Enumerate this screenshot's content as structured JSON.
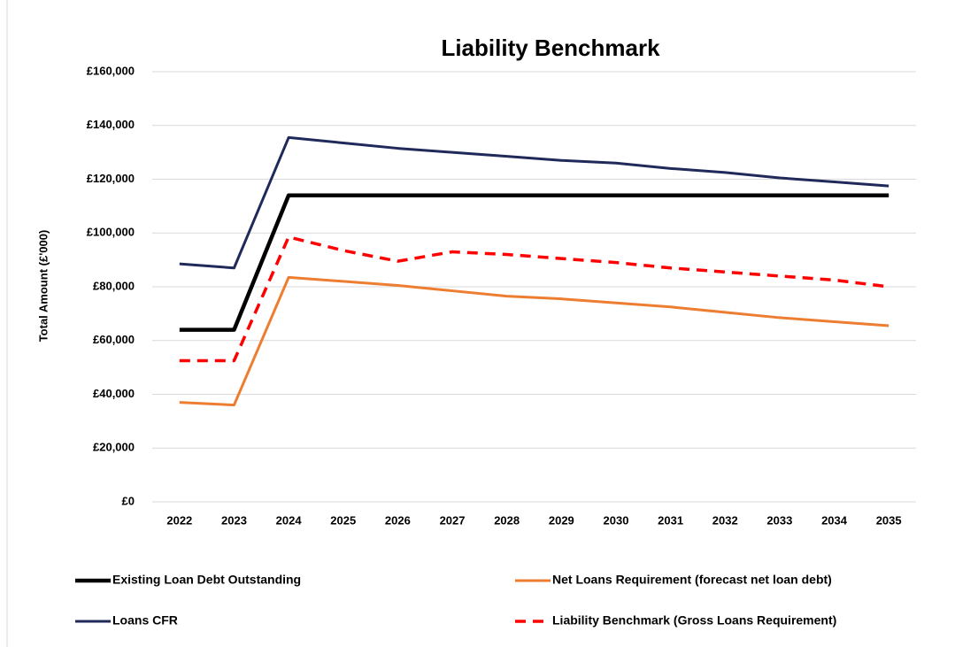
{
  "chart_data": {
    "type": "line",
    "title": "Liability Benchmark",
    "y_label": "Total Amount (£'000)",
    "categories": [
      "2022",
      "2023",
      "2024",
      "2025",
      "2026",
      "2027",
      "2028",
      "2029",
      "2030",
      "2031",
      "2032",
      "2033",
      "2034",
      "2035"
    ],
    "ylim": [
      0,
      160000
    ],
    "yticks": [
      {
        "value": 0,
        "label": "£0"
      },
      {
        "value": 20000,
        "label": "£20,000"
      },
      {
        "value": 40000,
        "label": "£40,000"
      },
      {
        "value": 60000,
        "label": "£60,000"
      },
      {
        "value": 80000,
        "label": "£80,000"
      },
      {
        "value": 100000,
        "label": "£100,000"
      },
      {
        "value": 120000,
        "label": "£120,000"
      },
      {
        "value": 140000,
        "label": "£140,000"
      },
      {
        "value": 160000,
        "label": "£160,000"
      }
    ],
    "grid": true,
    "legend": "bottom",
    "series": [
      {
        "name": "Existing Loan Debt Outstanding",
        "color": "#000000",
        "values": [
          64000,
          64000,
          114000,
          114000,
          114000,
          114000,
          114000,
          114000,
          114000,
          114000,
          114000,
          114000,
          114000,
          114000
        ]
      },
      {
        "name": "Net Loans Requirement (forecast net loan debt)",
        "color": "#ed7d31",
        "values": [
          37000,
          36000,
          83500,
          82000,
          80500,
          78500,
          76500,
          75500,
          74000,
          72500,
          70500,
          68500,
          67000,
          65500
        ]
      },
      {
        "name": "Loans CFR",
        "color": "#1f2a5a",
        "values": [
          88500,
          87000,
          135500,
          133500,
          131500,
          130000,
          128500,
          127000,
          126000,
          124000,
          122500,
          120500,
          119000,
          117500
        ]
      },
      {
        "name": "Liability Benchmark (Gross Loans Requirement)",
        "color": "#ff0000",
        "dashed": true,
        "values": [
          52500,
          52500,
          98500,
          93500,
          89500,
          93000,
          92000,
          90500,
          89000,
          87000,
          85500,
          84000,
          82500,
          80000
        ]
      }
    ]
  }
}
